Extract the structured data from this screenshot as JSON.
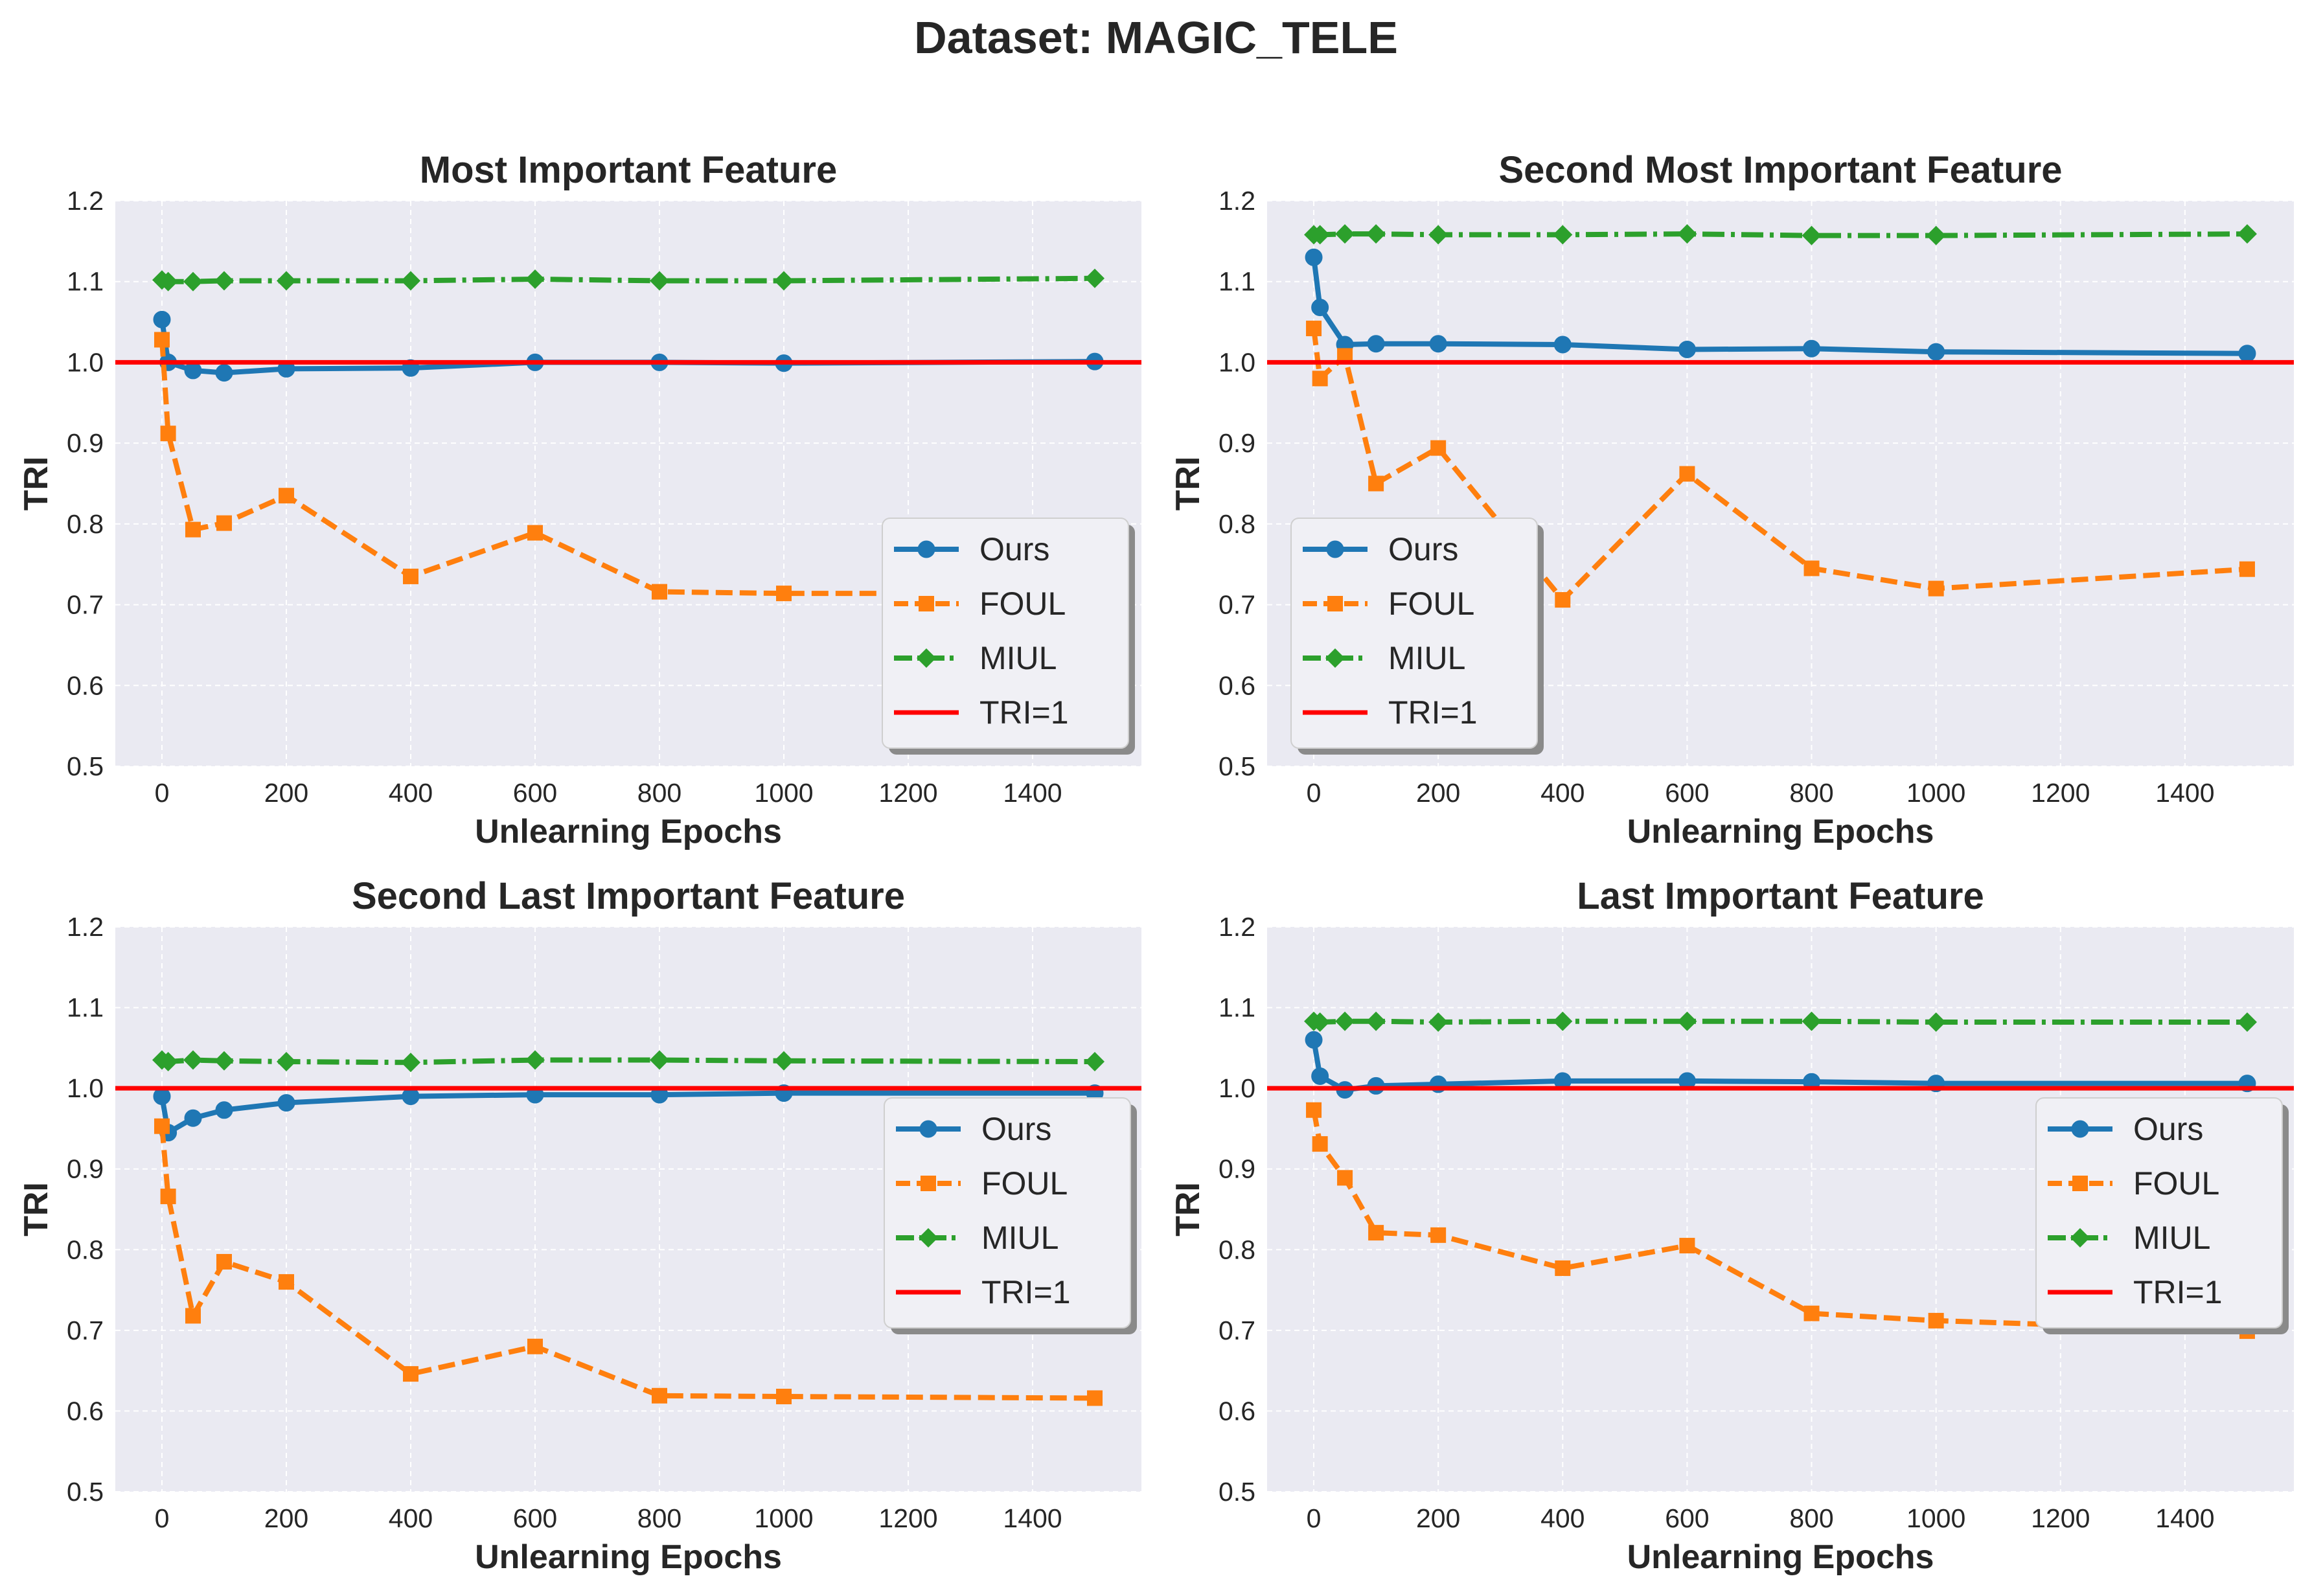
{
  "figure": {
    "suptitle": "Dataset: MAGIC_TELE"
  },
  "colors": {
    "ours": "#1f77b4",
    "foul": "#ff7f0e",
    "miul": "#2ca02c",
    "tri1": "#ff0000",
    "axes_bg": "#eaeaf2",
    "grid": "#ffffff"
  },
  "chart_data": [
    {
      "type": "line",
      "title": "Most Important Feature",
      "xlabel": "Unlearning Epochs",
      "ylabel": "TRI",
      "xlim": [
        -75,
        1575
      ],
      "ylim": [
        0.5,
        1.2
      ],
      "xticks": [
        0,
        200,
        400,
        600,
        800,
        1000,
        1200,
        1400
      ],
      "yticks": [
        0.5,
        0.6,
        0.7,
        0.8,
        0.9,
        1.0,
        1.1,
        1.2
      ],
      "xtick_labels": [
        "0",
        "200",
        "400",
        "600",
        "800",
        "1000",
        "1200",
        "1400"
      ],
      "ytick_labels": [
        "0.5",
        "0.6",
        "0.7",
        "0.8",
        "0.9",
        "1.0",
        "1.1",
        "1.2"
      ],
      "grid": true,
      "legend_position": "lower right",
      "legend_labels": [
        "Ours",
        "FOUL",
        "MIUL",
        "TRI=1"
      ],
      "x": [
        0,
        10,
        50,
        100,
        200,
        400,
        600,
        800,
        1000,
        1500
      ],
      "series": [
        {
          "name": "Ours",
          "values": [
            1.053,
            1.0,
            0.99,
            0.987,
            0.992,
            0.993,
            1.0,
            1.0,
            0.999,
            1.001
          ]
        },
        {
          "name": "FOUL",
          "values": [
            1.028,
            0.912,
            0.793,
            0.801,
            0.835,
            0.735,
            0.789,
            0.716,
            0.714,
            0.714
          ]
        },
        {
          "name": "MIUL",
          "values": [
            1.102,
            1.1,
            1.1,
            1.101,
            1.101,
            1.101,
            1.103,
            1.101,
            1.101,
            1.104
          ]
        }
      ],
      "reference_line": {
        "name": "TRI=1",
        "y": 1.0
      }
    },
    {
      "type": "line",
      "title": "Second Most Important Feature",
      "xlabel": "Unlearning Epochs",
      "ylabel": "TRI",
      "xlim": [
        -75,
        1575
      ],
      "ylim": [
        0.5,
        1.2
      ],
      "xticks": [
        0,
        200,
        400,
        600,
        800,
        1000,
        1200,
        1400
      ],
      "yticks": [
        0.5,
        0.6,
        0.7,
        0.8,
        0.9,
        1.0,
        1.1,
        1.2
      ],
      "xtick_labels": [
        "0",
        "200",
        "400",
        "600",
        "800",
        "1000",
        "1200",
        "1400"
      ],
      "ytick_labels": [
        "0.5",
        "0.6",
        "0.7",
        "0.8",
        "0.9",
        "1.0",
        "1.1",
        "1.2"
      ],
      "grid": true,
      "legend_position": "lower left",
      "legend_labels": [
        "Ours",
        "FOUL",
        "MIUL",
        "TRI=1"
      ],
      "x": [
        0,
        10,
        50,
        100,
        200,
        400,
        600,
        800,
        1000,
        1500
      ],
      "series": [
        {
          "name": "Ours",
          "values": [
            1.13,
            1.068,
            1.022,
            1.023,
            1.023,
            1.022,
            1.016,
            1.017,
            1.013,
            1.011
          ]
        },
        {
          "name": "FOUL",
          "values": [
            1.042,
            0.98,
            1.008,
            0.85,
            0.894,
            0.706,
            0.862,
            0.745,
            0.72,
            0.744
          ]
        },
        {
          "name": "MIUL",
          "values": [
            1.158,
            1.158,
            1.159,
            1.159,
            1.158,
            1.158,
            1.159,
            1.157,
            1.157,
            1.159
          ]
        }
      ],
      "reference_line": {
        "name": "TRI=1",
        "y": 1.0
      }
    },
    {
      "type": "line",
      "title": "Second Last Important Feature",
      "xlabel": "Unlearning Epochs",
      "ylabel": "TRI",
      "xlim": [
        -75,
        1575
      ],
      "ylim": [
        0.5,
        1.2
      ],
      "xticks": [
        0,
        200,
        400,
        600,
        800,
        1000,
        1200,
        1400
      ],
      "yticks": [
        0.5,
        0.6,
        0.7,
        0.8,
        0.9,
        1.0,
        1.1,
        1.2
      ],
      "xtick_labels": [
        "0",
        "200",
        "400",
        "600",
        "800",
        "1000",
        "1200",
        "1400"
      ],
      "ytick_labels": [
        "0.5",
        "0.6",
        "0.7",
        "0.8",
        "0.9",
        "1.0",
        "1.1",
        "1.2"
      ],
      "grid": true,
      "legend_position": "right",
      "legend_labels": [
        "Ours",
        "FOUL",
        "MIUL",
        "TRI=1"
      ],
      "x": [
        0,
        10,
        50,
        100,
        200,
        400,
        600,
        800,
        1000,
        1500
      ],
      "series": [
        {
          "name": "Ours",
          "values": [
            0.99,
            0.945,
            0.963,
            0.973,
            0.982,
            0.99,
            0.992,
            0.992,
            0.994,
            0.994
          ]
        },
        {
          "name": "FOUL",
          "values": [
            0.953,
            0.866,
            0.718,
            0.785,
            0.76,
            0.646,
            0.68,
            0.619,
            0.618,
            0.616
          ]
        },
        {
          "name": "MIUL",
          "values": [
            1.035,
            1.033,
            1.035,
            1.034,
            1.033,
            1.032,
            1.035,
            1.035,
            1.034,
            1.033
          ]
        }
      ],
      "reference_line": {
        "name": "TRI=1",
        "y": 1.0
      }
    },
    {
      "type": "line",
      "title": "Last Important Feature",
      "xlabel": "Unlearning Epochs",
      "ylabel": "TRI",
      "xlim": [
        -75,
        1575
      ],
      "ylim": [
        0.5,
        1.2
      ],
      "xticks": [
        0,
        200,
        400,
        600,
        800,
        1000,
        1200,
        1400
      ],
      "yticks": [
        0.5,
        0.6,
        0.7,
        0.8,
        0.9,
        1.0,
        1.1,
        1.2
      ],
      "xtick_labels": [
        "0",
        "200",
        "400",
        "600",
        "800",
        "1000",
        "1200",
        "1400"
      ],
      "ytick_labels": [
        "0.5",
        "0.6",
        "0.7",
        "0.8",
        "0.9",
        "1.0",
        "1.1",
        "1.2"
      ],
      "grid": true,
      "legend_position": "right",
      "legend_labels": [
        "Ours",
        "FOUL",
        "MIUL",
        "TRI=1"
      ],
      "x": [
        0,
        10,
        50,
        100,
        200,
        400,
        600,
        800,
        1000,
        1500
      ],
      "series": [
        {
          "name": "Ours",
          "values": [
            1.06,
            1.015,
            0.998,
            1.003,
            1.005,
            1.009,
            1.009,
            1.008,
            1.006,
            1.006
          ]
        },
        {
          "name": "FOUL",
          "values": [
            0.973,
            0.931,
            0.889,
            0.821,
            0.818,
            0.777,
            0.805,
            0.721,
            0.712,
            0.699
          ]
        },
        {
          "name": "MIUL",
          "values": [
            1.083,
            1.082,
            1.083,
            1.083,
            1.082,
            1.083,
            1.083,
            1.083,
            1.082,
            1.082
          ]
        }
      ],
      "reference_line": {
        "name": "TRI=1",
        "y": 1.0
      }
    }
  ]
}
